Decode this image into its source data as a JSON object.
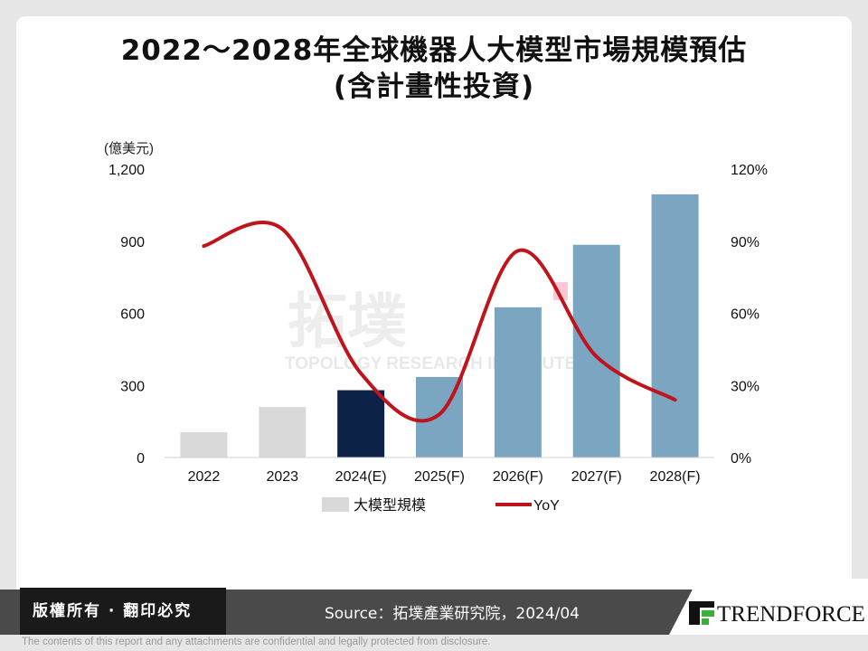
{
  "title_line1": "2022～2028年全球機器人大模型市場規模預估",
  "title_line2": "(含計畫性投資)",
  "watermark": {
    "cn": "拓墣",
    "en": "TOPOLOGY RESEARCH INSTITUTE"
  },
  "chart_data": {
    "type": "bar",
    "categories": [
      "2022",
      "2023",
      "2024(E)",
      "2025(F)",
      "2026(F)",
      "2027(F)",
      "2028(F)"
    ],
    "series": [
      {
        "name": "大模型規模",
        "type": "bar",
        "axis": "left",
        "values": [
          105,
          210,
          280,
          335,
          625,
          885,
          1095
        ]
      }
    ],
    "line_series": [
      {
        "name": "YoY",
        "type": "line",
        "axis": "right",
        "unit": "%",
        "values": [
          88,
          95,
          35,
          18,
          86,
          42,
          24
        ]
      }
    ],
    "bar_colors": [
      "#d9d9d9",
      "#d9d9d9",
      "#0d2247",
      "#7aa6c2",
      "#7aa6c2",
      "#7aa6c2",
      "#7aa6c2"
    ],
    "line_color": "#c0141c",
    "y_left": {
      "label": "(億美元)",
      "min": 0,
      "max": 1200,
      "ticks": [
        "0",
        "300",
        "600",
        "900",
        "1,200"
      ]
    },
    "y_right": {
      "min": 0,
      "max": 120,
      "ticks": [
        "0%",
        "30%",
        "60%",
        "90%",
        "120%"
      ]
    },
    "legend": [
      "大模型規模",
      "YoY"
    ]
  },
  "footer": {
    "rights": "版權所有 · 翻印必究",
    "source": "Source：拓墣產業研究院，2024/04",
    "logo_text": "TRENDFORCE",
    "disclaimer": "The contents of this report and any attachments are confidential and legally protected from disclosure."
  }
}
